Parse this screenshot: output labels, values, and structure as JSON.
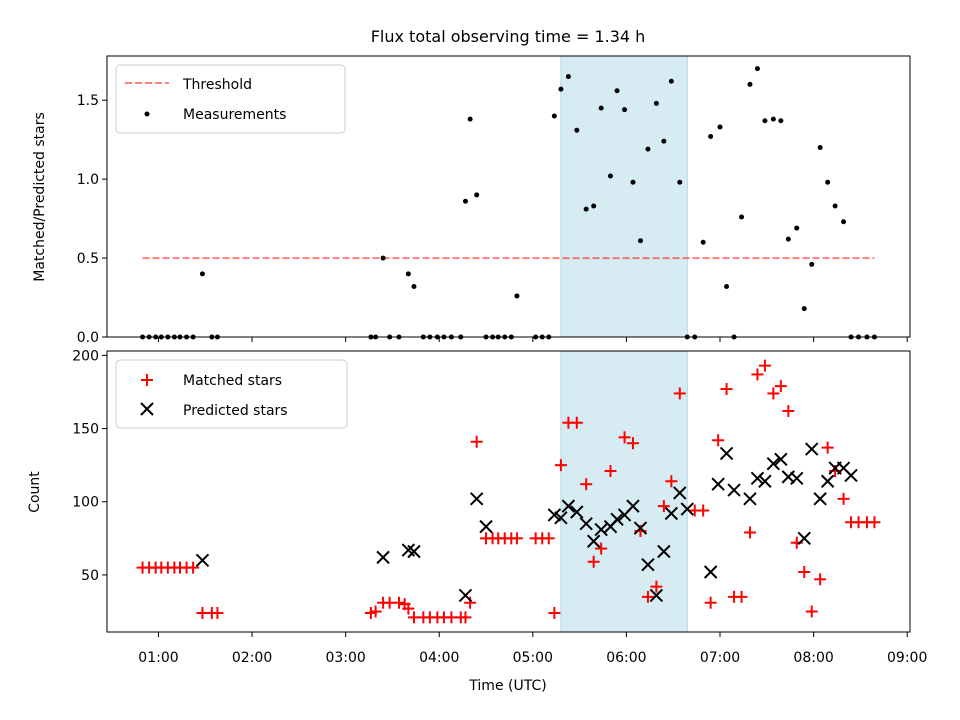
{
  "chart_data": [
    {
      "type": "scatter",
      "title": "Flux total observing time = 1.34 h",
      "xlabel": "",
      "ylabel": "Matched/Predicted stars",
      "xlim": [
        0.45,
        9.03
      ],
      "ylim": [
        0,
        1.78
      ],
      "yticks": [
        0.0,
        0.5,
        1.0,
        1.5
      ],
      "ytick_labels": [
        "0.0",
        "0.5",
        "1.0",
        "1.5"
      ],
      "xticks": [
        1,
        2,
        3,
        4,
        5,
        6,
        7,
        8,
        9
      ],
      "legend": {
        "position": "top-left",
        "entries": [
          "Threshold",
          "Measurements"
        ]
      },
      "shaded_span": {
        "x": [
          5.3,
          6.65
        ],
        "color": "#add8e6"
      },
      "threshold": {
        "name": "Threshold",
        "y": 0.5,
        "x": [
          0.83,
          8.65
        ],
        "color": "#ff0000"
      },
      "series": [
        {
          "name": "Measurements",
          "color": "#000000",
          "x": [
            0.83,
            0.9,
            0.97,
            1.03,
            1.1,
            1.17,
            1.23,
            1.3,
            1.37,
            1.47,
            1.57,
            1.63,
            3.27,
            3.32,
            3.4,
            3.47,
            3.57,
            3.67,
            3.73,
            3.83,
            3.9,
            3.98,
            4.05,
            4.13,
            4.23,
            4.28,
            4.33,
            4.4,
            4.5,
            4.57,
            4.63,
            4.7,
            4.77,
            4.83,
            5.03,
            5.1,
            5.17,
            5.23,
            5.3,
            5.38,
            5.47,
            5.57,
            5.65,
            5.73,
            5.83,
            5.9,
            5.98,
            6.07,
            6.15,
            6.23,
            6.32,
            6.4,
            6.48,
            6.57,
            6.65,
            6.73,
            6.82,
            6.9,
            7.0,
            7.07,
            7.15,
            7.23,
            7.32,
            7.4,
            7.48,
            7.57,
            7.65,
            7.73,
            7.82,
            7.9,
            7.98,
            8.07,
            8.15,
            8.23,
            8.32,
            8.4,
            8.48,
            8.57,
            8.65
          ],
          "y": [
            0,
            0,
            0,
            0,
            0,
            0,
            0,
            0,
            0,
            0.4,
            0,
            0,
            0,
            0,
            0.5,
            0,
            0,
            0.4,
            0.32,
            0,
            0,
            0,
            0,
            0,
            0,
            0.86,
            1.38,
            0.9,
            0,
            0,
            0,
            0,
            0,
            0.26,
            0,
            0,
            0,
            1.4,
            1.57,
            1.65,
            1.31,
            0.81,
            0.83,
            1.45,
            1.02,
            1.56,
            1.44,
            0.98,
            0.61,
            1.19,
            1.48,
            1.24,
            1.62,
            0.98,
            0,
            0,
            0.6,
            1.27,
            1.33,
            0.32,
            0,
            0.76,
            1.6,
            1.7,
            1.37,
            1.38,
            1.37,
            0.62,
            0.69,
            0.18,
            0.46,
            1.2,
            0.98,
            0.83,
            0.73,
            0,
            0,
            0,
            0
          ]
        }
      ]
    },
    {
      "type": "scatter",
      "title": "",
      "xlabel": "Time (UTC)",
      "ylabel": "Count",
      "xlim": [
        0.45,
        9.03
      ],
      "ylim": [
        11,
        203
      ],
      "yticks": [
        50,
        100,
        150,
        200
      ],
      "ytick_labels": [
        "50",
        "100",
        "150",
        "200"
      ],
      "xticks": [
        1,
        2,
        3,
        4,
        5,
        6,
        7,
        8,
        9
      ],
      "xtick_labels": [
        "01:00",
        "02:00",
        "03:00",
        "04:00",
        "05:00",
        "06:00",
        "07:00",
        "08:00",
        "09:00"
      ],
      "legend": {
        "position": "top-left",
        "entries": [
          "Matched stars",
          "Predicted stars"
        ]
      },
      "shaded_span": {
        "x": [
          5.3,
          6.65
        ],
        "color": "#add8e6"
      },
      "series": [
        {
          "name": "Matched stars",
          "marker": "+",
          "color": "#ff0000",
          "x": [
            0.83,
            0.9,
            0.97,
            1.03,
            1.1,
            1.17,
            1.23,
            1.3,
            1.37,
            1.47,
            1.57,
            1.63,
            3.27,
            3.32,
            3.4,
            3.47,
            3.57,
            3.63,
            3.67,
            3.73,
            3.83,
            3.9,
            3.98,
            4.05,
            4.13,
            4.23,
            4.28,
            4.33,
            4.4,
            4.5,
            4.57,
            4.63,
            4.7,
            4.77,
            4.83,
            5.03,
            5.1,
            5.17,
            5.23,
            5.3,
            5.38,
            5.47,
            5.57,
            5.65,
            5.73,
            5.83,
            5.98,
            6.07,
            6.15,
            6.23,
            6.32,
            6.4,
            6.48,
            6.57,
            6.73,
            6.82,
            6.9,
            6.98,
            7.07,
            7.15,
            7.23,
            7.32,
            7.4,
            7.48,
            7.57,
            7.65,
            7.73,
            7.82,
            7.9,
            7.98,
            8.07,
            8.15,
            8.23,
            8.32,
            8.4,
            8.48,
            8.57,
            8.65
          ],
          "y": [
            55,
            55,
            55,
            55,
            55,
            55,
            55,
            55,
            55,
            24,
            24,
            24,
            24,
            25,
            31,
            31,
            31,
            30,
            27,
            21,
            21,
            21,
            21,
            21,
            21,
            21,
            21,
            31,
            141,
            75,
            75,
            75,
            75,
            75,
            75,
            75,
            75,
            75,
            24,
            125,
            154,
            154,
            112,
            59,
            68,
            121,
            144,
            140,
            80,
            35,
            42,
            97,
            114,
            174,
            94,
            94,
            31,
            142,
            177,
            35,
            35,
            79,
            187,
            193,
            174,
            179,
            162,
            72,
            52,
            25,
            47,
            137,
            121,
            102,
            86,
            86,
            86,
            86
          ]
        },
        {
          "name": "Predicted stars",
          "marker": "x",
          "color": "#000000",
          "x": [
            1.47,
            3.4,
            3.67,
            3.73,
            4.28,
            4.4,
            4.5,
            5.23,
            5.3,
            5.38,
            5.47,
            5.57,
            5.65,
            5.73,
            5.83,
            5.9,
            5.98,
            6.07,
            6.15,
            6.23,
            6.32,
            6.4,
            6.48,
            6.57,
            6.65,
            6.9,
            6.98,
            7.07,
            7.15,
            7.32,
            7.4,
            7.48,
            7.57,
            7.65,
            7.73,
            7.82,
            7.9,
            7.98,
            8.07,
            8.15,
            8.23,
            8.32,
            8.4
          ],
          "y": [
            60,
            62,
            67,
            66,
            36,
            102,
            83,
            91,
            89,
            97,
            93,
            85,
            73,
            81,
            83,
            88,
            91,
            97,
            82,
            57,
            36,
            66,
            92,
            106,
            95,
            52,
            112,
            133,
            108,
            102,
            116,
            114,
            126,
            129,
            117,
            116,
            75,
            136,
            102,
            114,
            123,
            123,
            118
          ]
        }
      ]
    }
  ]
}
